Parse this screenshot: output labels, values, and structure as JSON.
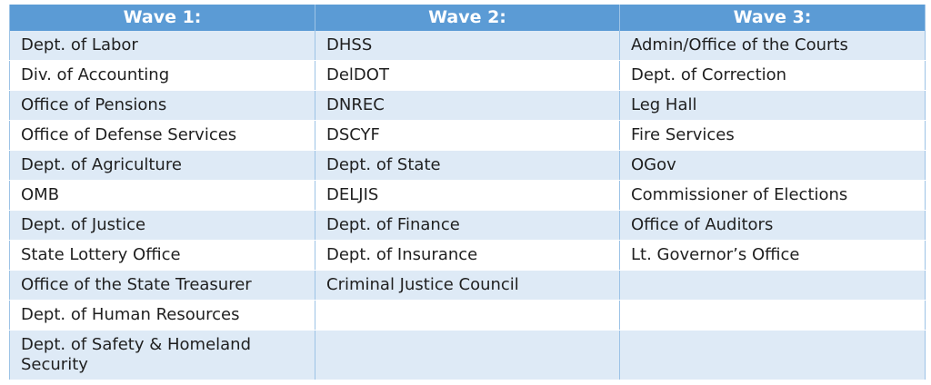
{
  "table": {
    "headers": [
      "Wave 1:",
      "Wave 2:",
      "Wave 3:"
    ],
    "rows": [
      [
        "Dept. of Labor",
        "DHSS",
        "Admin/Office of the Courts"
      ],
      [
        "Div. of Accounting",
        "DelDOT",
        "Dept. of Correction"
      ],
      [
        "Office of Pensions",
        "DNREC",
        "Leg Hall"
      ],
      [
        "Office of Defense Services",
        "DSCYF",
        "Fire Services"
      ],
      [
        "Dept. of Agriculture",
        "Dept. of State",
        "OGov"
      ],
      [
        "OMB",
        "DELJIS",
        "Commissioner of Elections"
      ],
      [
        "Dept. of Justice",
        "Dept. of Finance",
        "Office of Auditors"
      ],
      [
        "State Lottery Office",
        "Dept. of Insurance",
        "Lt. Governor’s Office"
      ],
      [
        "Office of the State Treasurer",
        "Criminal Justice Council",
        ""
      ],
      [
        "Dept. of Human Resources",
        "",
        ""
      ],
      [
        "Dept. of Safety & Homeland Security",
        "",
        ""
      ]
    ]
  },
  "colors": {
    "header_bg": "#5b9bd5",
    "band_bg": "#deeaf6",
    "header_text": "#ffffff"
  }
}
